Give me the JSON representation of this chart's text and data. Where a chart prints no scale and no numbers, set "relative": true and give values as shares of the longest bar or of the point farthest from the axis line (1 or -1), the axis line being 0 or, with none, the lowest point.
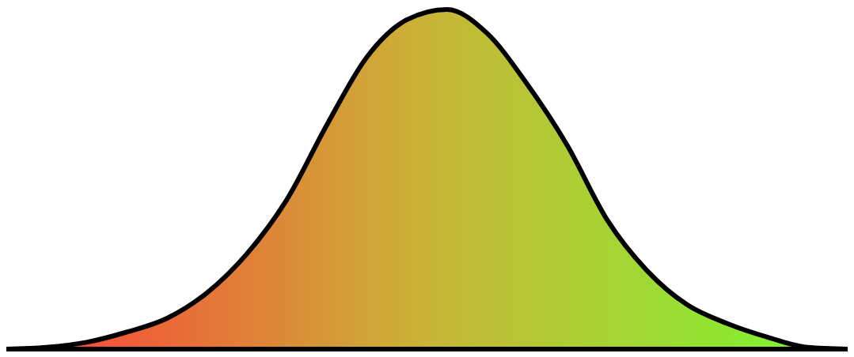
{
  "chart_data": {
    "type": "area",
    "relative": true,
    "categories": [
      null,
      null,
      null,
      null,
      null,
      null,
      null,
      null,
      null,
      null,
      null,
      null,
      null,
      null,
      null,
      null,
      null,
      null,
      null,
      null,
      null,
      null
    ],
    "series": [
      {
        "color": "#000000",
        "values": [
          0,
          0.005,
          0.02,
          0.05,
          0.09,
          0.165,
          0.28,
          0.44,
          0.66,
          0.86,
          0.97,
          1,
          0.93,
          0.78,
          0.6,
          0.38,
          0.23,
          0.13,
          0.075,
          0.035,
          0.005,
          0
        ]
      }
    ],
    "colors": [
      "#ff3a3a",
      "#fa463a",
      "#f55139",
      "#f05d39",
      "#ea6938",
      "#e57538",
      "#e08038",
      "#db8c37",
      "#d69837",
      "#d1a337",
      "#ccaf36",
      "#c5b836",
      "#bdbf35",
      "#b6c535",
      "#aecc34",
      "#a6d333",
      "#9fd933",
      "#97e032",
      "#8fe632",
      "#87ed31",
      "#80f330",
      "#78fa30"
    ]
  }
}
